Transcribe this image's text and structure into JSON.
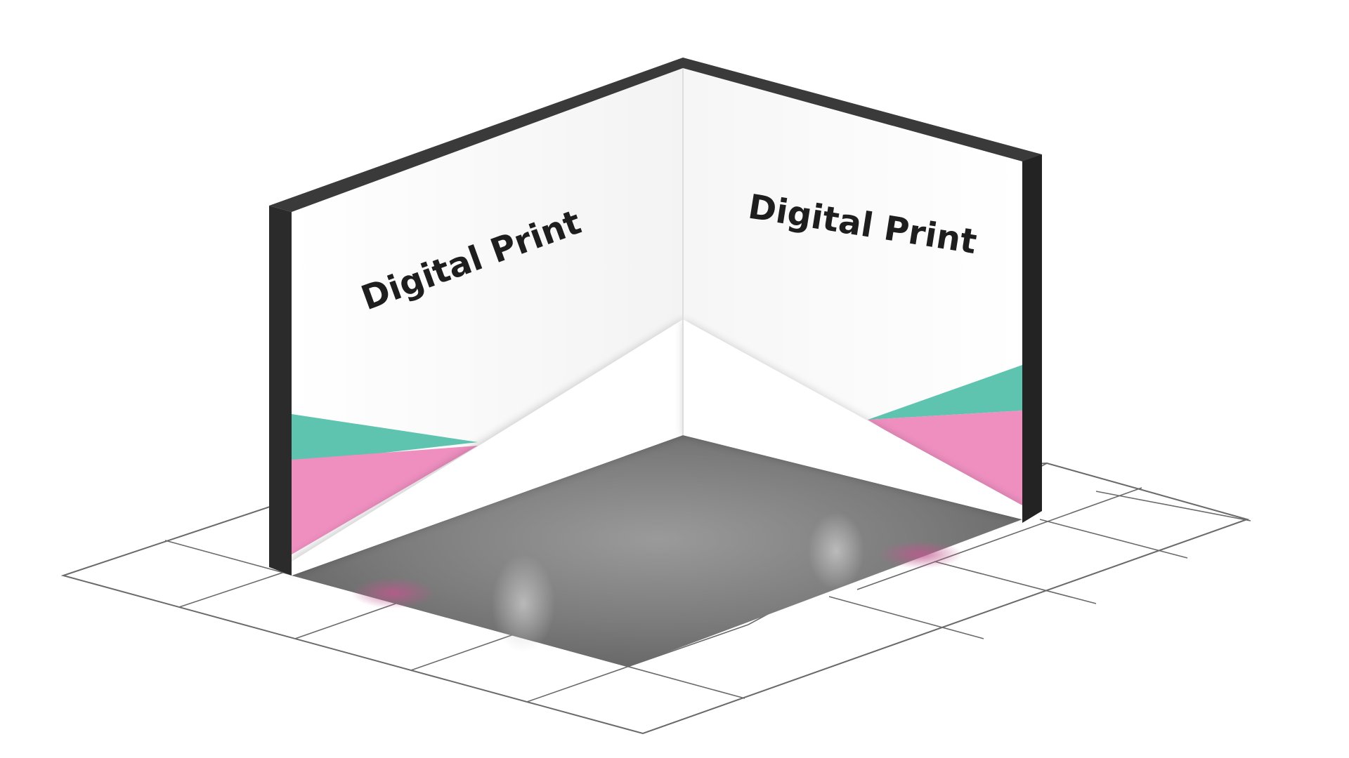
{
  "walls": {
    "left": {
      "label": "Digital Print"
    },
    "right": {
      "label": "Digital Print"
    }
  },
  "colors": {
    "frame": "#2b2b2b",
    "frame_top": "#3a3a3a",
    "wall": "#ffffff",
    "teal": "#5ec4b0",
    "pink": "#ee8fc0",
    "floor": "#7a7a7a",
    "grid_line": "#6a6a6a"
  }
}
